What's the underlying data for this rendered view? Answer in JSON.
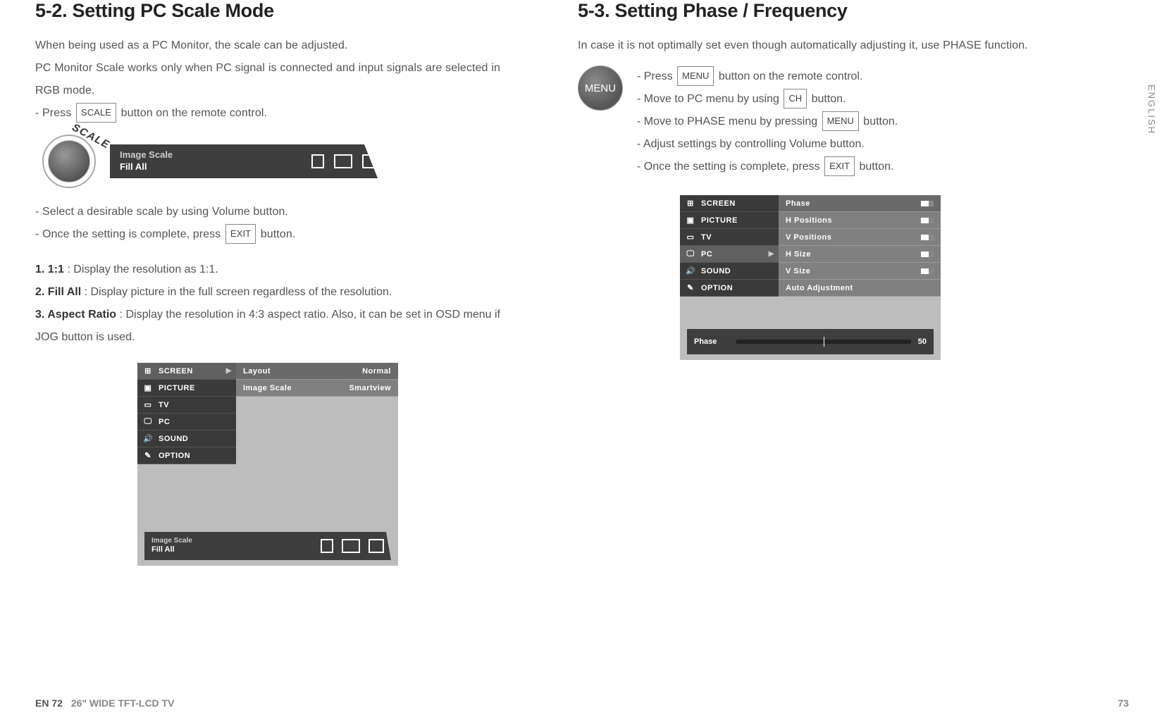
{
  "left": {
    "title": "5-2. Setting PC Scale Mode",
    "p1": "When being used as a PC Monitor, the scale can be adjusted.",
    "p2": "PC Monitor Scale works only when PC signal is connected and input signals are selected in RGB mode.",
    "step_press": "- Press",
    "scale_btn": "SCALE",
    "step_press_after": "button on the remote control.",
    "knob_label": "SCALE",
    "scalebar_l1": "Image Scale",
    "scalebar_l2": "Fill  All",
    "step_select": "- Select a desirable scale by using Volume button.",
    "step_complete_pre": "- Once the setting is complete, press",
    "exit_btn": "EXIT",
    "step_complete_post": "button.",
    "opt1_b": "1. 1:1",
    "opt1_t": " : Display the resolution as 1:1.",
    "opt2_b": "2. Fill All",
    "opt2_t": " : Display picture in the full screen regardless of the resolution.",
    "opt3_b": "3. Aspect Ratio",
    "opt3_t": " : Display the resolution in 4:3 aspect ratio. Also, it can be set in OSD menu if JOG button is used.",
    "osd": {
      "menu": [
        {
          "icon": "⊞",
          "label": "SCREEN",
          "active": true
        },
        {
          "icon": "▣",
          "label": "PICTURE"
        },
        {
          "icon": "▭",
          "label": "TV"
        },
        {
          "icon": "🖵",
          "label": "PC"
        },
        {
          "icon": "🔊",
          "label": "SOUND"
        },
        {
          "icon": "✎",
          "label": "OPTION"
        }
      ],
      "right_rows": [
        {
          "label": "Layout",
          "val": "Normal",
          "hi": true
        },
        {
          "label": "Image Scale",
          "val": "Smartview"
        }
      ],
      "bottom_l1": "Image Scale",
      "bottom_l2": "Fill  All"
    }
  },
  "right": {
    "title": "5-3. Setting Phase / Frequency",
    "intro": "In case it is not optimally set even though automatically adjusting it, use PHASE function.",
    "menu_circle": "MENU",
    "s1_pre": "- Press",
    "s1_btn": "MENU",
    "s1_post": "button on the remote control.",
    "s2_pre": "- Move to PC menu by using",
    "s2_btn": "CH",
    "s2_post": "button.",
    "s3_pre": "- Move to PHASE menu by pressing",
    "s3_btn": "MENU",
    "s3_post": "button.",
    "s4": "- Adjust settings by controlling Volume button.",
    "s5_pre": "- Once the setting is complete, press",
    "s5_btn": "EXIT",
    "s5_post": "button.",
    "osd": {
      "menu": [
        {
          "icon": "⊞",
          "label": "SCREEN"
        },
        {
          "icon": "▣",
          "label": "PICTURE"
        },
        {
          "icon": "▭",
          "label": "TV"
        },
        {
          "icon": "🖵",
          "label": "PC",
          "active": true
        },
        {
          "icon": "🔊",
          "label": "SOUND"
        },
        {
          "icon": "✎",
          "label": "OPTION"
        }
      ],
      "right_rows": [
        {
          "label": "Phase",
          "slider": true,
          "hi": true
        },
        {
          "label": "H Positions",
          "slider": true
        },
        {
          "label": "V Positions",
          "slider": true
        },
        {
          "label": "H Size",
          "slider": true
        },
        {
          "label": "V Size",
          "slider": true
        },
        {
          "label": "Auto Adjustment"
        }
      ],
      "slider_label": "Phase",
      "slider_value": "50",
      "slider_percent": 50
    }
  },
  "footer": {
    "left_page": "EN 72",
    "left_model": "26\" WIDE TFT-LCD TV",
    "right_page": "73"
  },
  "side_tab": "ENGLISH",
  "colors": {
    "heading": "#222222",
    "text": "#555555",
    "osd_dark": "#3e3e3e",
    "osd_left": "#3a3a3a",
    "osd_right": "#808080",
    "osd_bg": "#bdbdbd"
  }
}
